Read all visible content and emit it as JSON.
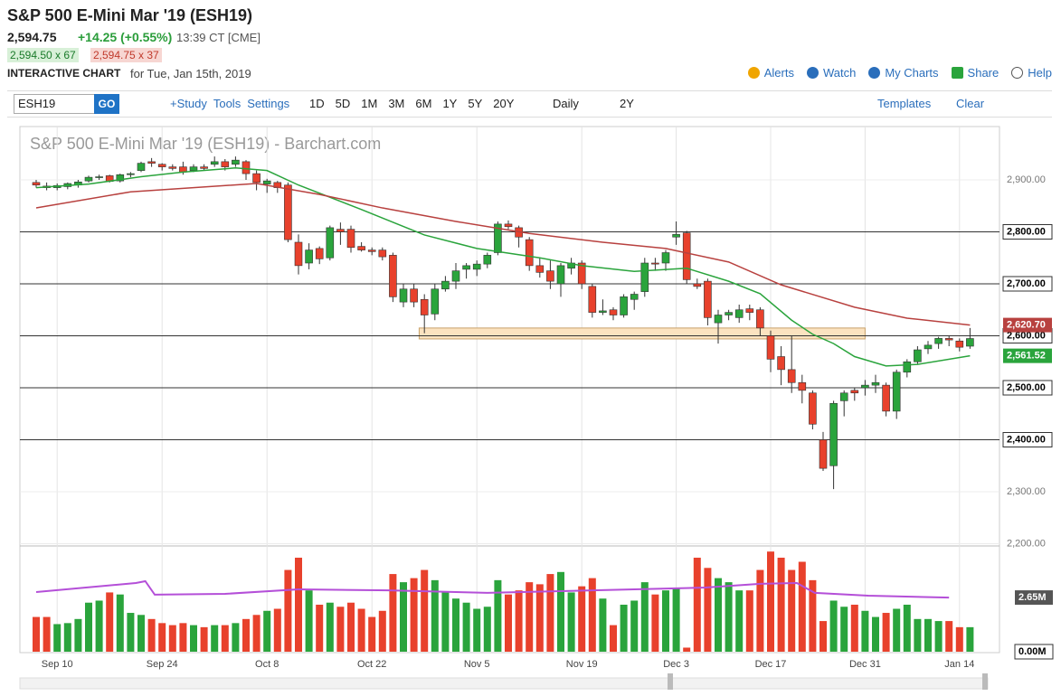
{
  "header": {
    "title": "S&P 500 E-Mini Mar '19 (ESH19)",
    "price": "2,594.75",
    "change": "+14.25 (+0.55%)",
    "time": "13:39 CT [CME]",
    "bid": "2,594.50 x 67",
    "ask": "2,594.75 x 37",
    "chart_label": "INTERACTIVE CHART",
    "date": "for Tue, Jan 15th, 2019",
    "links": [
      "Alerts",
      "Watch",
      "My Charts",
      "Share",
      "Help"
    ]
  },
  "toolbar": {
    "symbol": "ESH19",
    "go": "GO",
    "tools": [
      "+Study",
      "Tools",
      "Settings"
    ],
    "ranges": [
      "1D",
      "5D",
      "1M",
      "3M",
      "6M",
      "1Y",
      "5Y",
      "20Y"
    ],
    "interval": "Daily",
    "period": "2Y",
    "templates": "Templates",
    "clear": "Clear"
  },
  "chart_data": {
    "type": "candlestick",
    "title": "S&P 500 E-Mini Mar '19 (ESH19) - Barchart.com",
    "categories": [
      null,
      null,
      "Sep 10",
      null,
      null,
      null,
      null,
      null,
      null,
      null,
      null,
      null,
      "Sep 24",
      null,
      null,
      null,
      null,
      null,
      null,
      null,
      null,
      null,
      "Oct 8",
      null,
      null,
      null,
      null,
      null,
      null,
      null,
      null,
      null,
      "Oct 22",
      null,
      null,
      null,
      null,
      null,
      null,
      null,
      null,
      null,
      "Nov 5",
      null,
      null,
      null,
      null,
      null,
      null,
      null,
      null,
      null,
      "Nov 19",
      null,
      null,
      null,
      null,
      null,
      null,
      null,
      null,
      "Dec 3",
      null,
      null,
      null,
      null,
      null,
      null,
      null,
      null,
      "Dec 17",
      null,
      null,
      null,
      null,
      null,
      null,
      null,
      null,
      "Dec 31",
      null,
      null,
      null,
      null,
      null,
      null,
      null,
      null,
      "Jan 14",
      null
    ],
    "open": [
      2895,
      2888,
      2885,
      2887,
      2890,
      2898,
      2905,
      2908,
      2898,
      2910,
      2918,
      2935,
      2930,
      2925,
      2925,
      2918,
      2925,
      2930,
      2935,
      2930,
      2935,
      2912,
      2892,
      2895,
      2890,
      2780,
      2740,
      2768,
      2750,
      2805,
      2805,
      2772,
      2765,
      2765,
      2755,
      2665,
      2690,
      2670,
      2642,
      2690,
      2705,
      2728,
      2728,
      2738,
      2760,
      2815,
      2808,
      2785,
      2735,
      2725,
      2700,
      2730,
      2740,
      2695,
      2645,
      2650,
      2640,
      2670,
      2685,
      2740,
      2740,
      2790,
      2798,
      2700,
      2705,
      2625,
      2640,
      2635,
      2652,
      2650,
      2600,
      2560,
      2535,
      2510,
      2490,
      2400,
      2350,
      2475,
      2495,
      2500,
      2505,
      2505,
      2455,
      2530,
      2550,
      2575,
      2585,
      2595,
      2590,
      2580
    ],
    "high": [
      2900,
      2895,
      2893,
      2895,
      2900,
      2908,
      2910,
      2910,
      2912,
      2915,
      2935,
      2942,
      2932,
      2930,
      2935,
      2930,
      2930,
      2945,
      2940,
      2945,
      2938,
      2918,
      2902,
      2898,
      2895,
      2795,
      2778,
      2772,
      2812,
      2818,
      2812,
      2780,
      2770,
      2770,
      2760,
      2700,
      2700,
      2680,
      2700,
      2715,
      2740,
      2740,
      2745,
      2760,
      2820,
      2822,
      2812,
      2790,
      2750,
      2745,
      2740,
      2750,
      2745,
      2700,
      2670,
      2655,
      2680,
      2685,
      2750,
      2750,
      2765,
      2820,
      2802,
      2710,
      2710,
      2650,
      2650,
      2660,
      2660,
      2655,
      2610,
      2580,
      2600,
      2525,
      2495,
      2415,
      2475,
      2495,
      2500,
      2515,
      2525,
      2510,
      2535,
      2555,
      2580,
      2590,
      2598,
      2600,
      2595,
      2615
    ],
    "low": [
      2885,
      2880,
      2880,
      2882,
      2885,
      2895,
      2900,
      2895,
      2895,
      2905,
      2915,
      2925,
      2918,
      2918,
      2910,
      2915,
      2918,
      2925,
      2918,
      2925,
      2900,
      2880,
      2875,
      2875,
      2780,
      2718,
      2728,
      2738,
      2745,
      2775,
      2760,
      2762,
      2755,
      2745,
      2665,
      2655,
      2655,
      2605,
      2630,
      2685,
      2690,
      2710,
      2715,
      2730,
      2755,
      2805,
      2770,
      2725,
      2712,
      2690,
      2675,
      2718,
      2690,
      2635,
      2640,
      2630,
      2635,
      2650,
      2675,
      2725,
      2725,
      2775,
      2700,
      2690,
      2620,
      2585,
      2630,
      2625,
      2630,
      2600,
      2530,
      2505,
      2490,
      2470,
      2420,
      2340,
      2305,
      2445,
      2475,
      2485,
      2490,
      2445,
      2440,
      2520,
      2545,
      2565,
      2575,
      2580,
      2570,
      2575
    ],
    "close": [
      2890,
      2885,
      2889,
      2893,
      2896,
      2905,
      2906,
      2897,
      2910,
      2912,
      2932,
      2932,
      2925,
      2922,
      2915,
      2925,
      2922,
      2935,
      2925,
      2938,
      2912,
      2895,
      2898,
      2885,
      2785,
      2735,
      2765,
      2748,
      2808,
      2800,
      2770,
      2765,
      2762,
      2752,
      2675,
      2690,
      2665,
      2640,
      2690,
      2705,
      2725,
      2735,
      2738,
      2755,
      2815,
      2810,
      2790,
      2735,
      2722,
      2705,
      2735,
      2740,
      2700,
      2645,
      2648,
      2640,
      2675,
      2680,
      2740,
      2738,
      2760,
      2795,
      2708,
      2695,
      2635,
      2640,
      2645,
      2650,
      2645,
      2615,
      2555,
      2535,
      2510,
      2495,
      2430,
      2345,
      2470,
      2490,
      2490,
      2505,
      2510,
      2455,
      2530,
      2550,
      2573,
      2582,
      2595,
      2592,
      2578,
      2594.75
    ],
    "volume": [
      1.7,
      1.7,
      1.35,
      1.4,
      1.6,
      2.4,
      2.5,
      2.9,
      2.8,
      1.9,
      1.8,
      1.6,
      1.4,
      1.3,
      1.4,
      1.3,
      1.2,
      1.3,
      1.3,
      1.4,
      1.6,
      1.8,
      2.0,
      2.1,
      4.0,
      4.6,
      3.0,
      2.3,
      2.4,
      2.2,
      2.4,
      2.1,
      1.7,
      2.0,
      3.8,
      3.4,
      3.6,
      4.0,
      3.5,
      2.9,
      2.6,
      2.4,
      2.1,
      2.2,
      3.5,
      2.8,
      3.0,
      3.4,
      3.3,
      3.8,
      3.9,
      2.9,
      3.2,
      3.6,
      2.6,
      1.3,
      2.3,
      2.5,
      3.4,
      2.8,
      3.0,
      3.1,
      0.2,
      4.6,
      4.1,
      3.6,
      3.4,
      3.0,
      3.0,
      4.0,
      4.9,
      4.6,
      4.0,
      4.4,
      3.5,
      1.5,
      2.5,
      2.2,
      2.3,
      2.0,
      1.7,
      1.9,
      2.1,
      2.3,
      1.6,
      1.6,
      1.5,
      1.5,
      1.2,
      1.2
    ],
    "up_color": "#2aa43c",
    "down_color": "#e8412c",
    "ylim": [
      2197.4,
      3002.6
    ],
    "yticks": [
      {
        "value": 2200,
        "label": "2,200.00"
      },
      {
        "value": 2300,
        "label": "2,300.00"
      },
      {
        "value": 2400,
        "label": "2,400.00"
      },
      {
        "value": 2500,
        "label": "2,500.00"
      },
      {
        "value": 2600,
        "label": "2,600.00"
      },
      {
        "value": 2700,
        "label": "2,700.00"
      },
      {
        "value": 2800,
        "label": "2,800.00"
      },
      {
        "value": 2900,
        "label": "2,900.00"
      }
    ],
    "levels": [
      2800,
      2700,
      2600,
      2500,
      2400
    ],
    "zone": {
      "x": [
        36.5,
        79
      ],
      "y": [
        2594,
        2615
      ],
      "color": "#fbe3c0"
    },
    "vlim": [
      0,
      5.13
    ],
    "vticks": [
      {
        "value": 0,
        "label": "0.00M"
      }
    ],
    "ma": [
      {
        "panel": "price",
        "color": "#2aa43c",
        "x": [
          0,
          5,
          10,
          14,
          19,
          22,
          25,
          31,
          37,
          42,
          48,
          52,
          57,
          62,
          66,
          69,
          72,
          74,
          76,
          78,
          81,
          84,
          89
        ],
        "values": [
          2885,
          2892,
          2906,
          2915,
          2923,
          2918,
          2890,
          2843,
          2794,
          2768,
          2750,
          2735,
          2724,
          2730,
          2705,
          2681,
          2630,
          2603,
          2585,
          2560,
          2542,
          2545,
          2561.52
        ],
        "end_label": "2,561.52"
      },
      {
        "panel": "price",
        "color": "#b8413f",
        "x": [
          0,
          9,
          21,
          27,
          33,
          40,
          47,
          54,
          60,
          66,
          71,
          78,
          83,
          89
        ],
        "values": [
          2846,
          2877,
          2893,
          2872,
          2846,
          2820,
          2797,
          2780,
          2768,
          2742,
          2698,
          2655,
          2634,
          2620.7
        ],
        "end_label": "2,620.70"
      },
      {
        "panel": "volume",
        "color": "#b44fd8",
        "tag_color": "#555555",
        "x": [
          0,
          9.5,
          10.4,
          11.3,
          18,
          25,
          33.6,
          43,
          57,
          63.8,
          69,
          72.5,
          74.2,
          79.3,
          87
        ],
        "values": [
          2.92,
          3.36,
          3.45,
          2.79,
          2.83,
          3.05,
          3.0,
          2.88,
          3.05,
          3.14,
          3.32,
          3.36,
          2.88,
          2.74,
          2.65
        ],
        "end_label": "2.65M"
      }
    ]
  }
}
